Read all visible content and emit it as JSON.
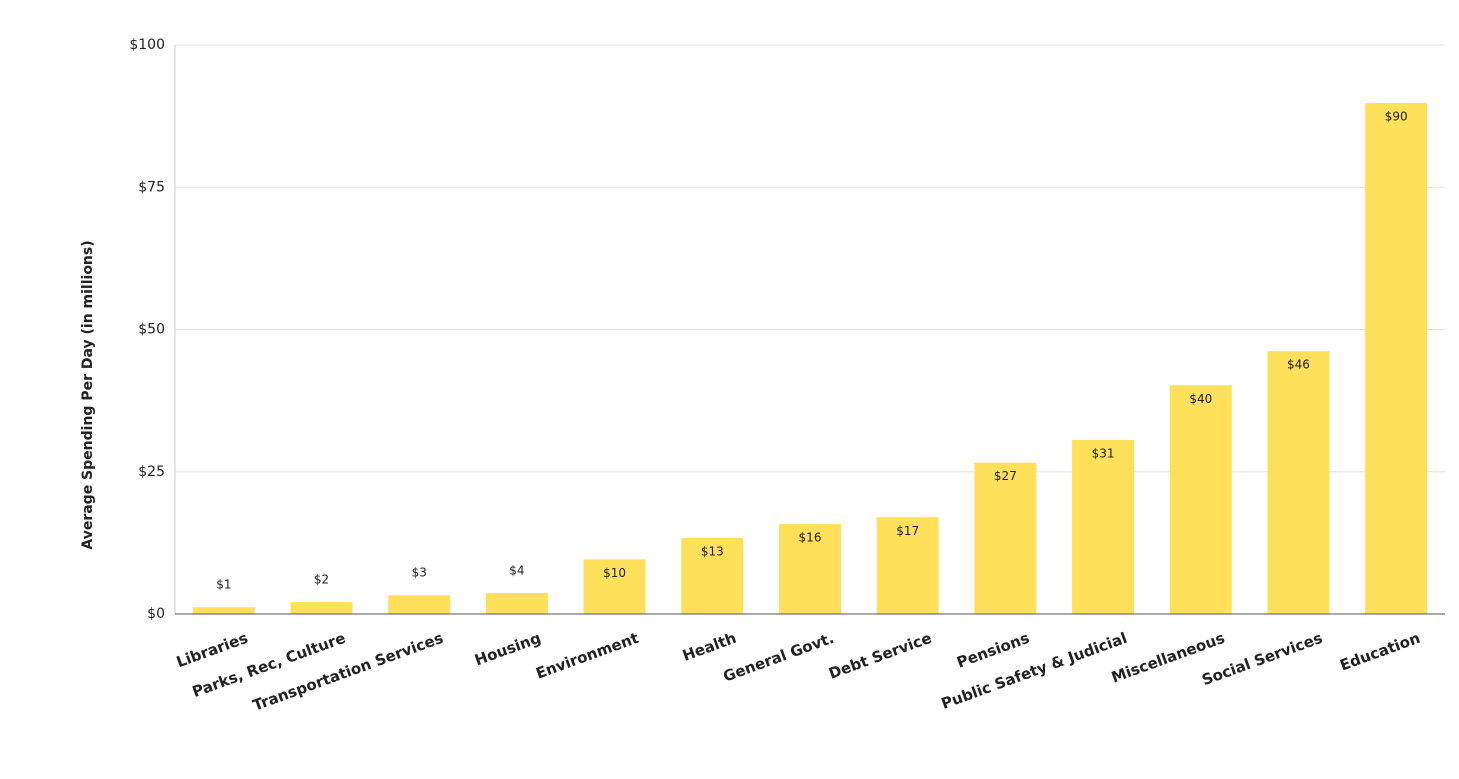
{
  "chart_data": {
    "type": "bar",
    "y_label": "Average Spending Per Day (in millions)",
    "categories": [
      "Libraries",
      "Parks, Rec, Culture",
      "Transportation Services",
      "Housing",
      "Environment",
      "Health",
      "General Govt.",
      "Debt Service",
      "Pensions",
      "Public Safety & Judicial",
      "Miscellaneous",
      "Social Services",
      "Education"
    ],
    "values": [
      1.2,
      2.1,
      3.3,
      3.7,
      9.6,
      13.4,
      15.8,
      17.0,
      26.6,
      30.6,
      40.2,
      46.2,
      89.8
    ],
    "value_labels": [
      "$1",
      "$2",
      "$3",
      "$4",
      "$10",
      "$13",
      "$16",
      "$17",
      "$27",
      "$31",
      "$40",
      "$46",
      "$90"
    ],
    "color": "#ffe05a",
    "ylim": [
      0,
      100
    ],
    "yticks": [
      {
        "value": 0,
        "label": "$0"
      },
      {
        "value": 25,
        "label": "$25"
      },
      {
        "value": 50,
        "label": "$50"
      },
      {
        "value": 75,
        "label": "$75"
      },
      {
        "value": 100,
        "label": "$100"
      }
    ],
    "grid": true
  }
}
